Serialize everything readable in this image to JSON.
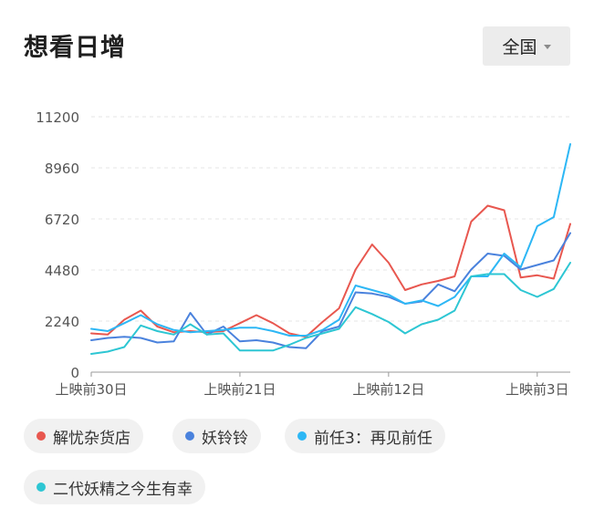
{
  "header": {
    "title": "想看日增",
    "region": "全国"
  },
  "chart_data": {
    "type": "line",
    "title": "",
    "xlabel": "",
    "ylabel": "",
    "ylim": [
      0,
      11200
    ],
    "yticks": [
      0,
      2240,
      4480,
      6720,
      8960,
      11200
    ],
    "xticks": [
      {
        "label": "上映前30日",
        "index": 0
      },
      {
        "label": "上映前21日",
        "index": 9
      },
      {
        "label": "上映前12日",
        "index": 18
      },
      {
        "label": "上映前3日",
        "index": 27
      }
    ],
    "x": [
      "上映前30日",
      "上映前29日",
      "上映前28日",
      "上映前27日",
      "上映前26日",
      "上映前25日",
      "上映前24日",
      "上映前23日",
      "上映前22日",
      "上映前21日",
      "上映前20日",
      "上映前19日",
      "上映前18日",
      "上映前17日",
      "上映前16日",
      "上映前15日",
      "上映前14日",
      "上映前13日",
      "上映前12日",
      "上映前11日",
      "上映前10日",
      "上映前9日",
      "上映前8日",
      "上映前7日",
      "上映前6日",
      "上映前5日",
      "上映前4日",
      "上映前3日",
      "上映前2日",
      "上映前1日"
    ],
    "grid": true,
    "legend_position": "bottom",
    "series": [
      {
        "name": "解忧杂货店",
        "color": "#e8574f",
        "values": [
          1700,
          1650,
          2300,
          2700,
          2000,
          1750,
          1800,
          1750,
          1800,
          2150,
          2500,
          2150,
          1700,
          1550,
          2200,
          2800,
          4500,
          5600,
          4800,
          3600,
          3850,
          4000,
          4200,
          6600,
          7300,
          7100,
          4150,
          4250,
          4100,
          6500
        ]
      },
      {
        "name": "妖铃铃",
        "color": "#4a82dd",
        "values": [
          1400,
          1500,
          1550,
          1500,
          1300,
          1350,
          2600,
          1650,
          2000,
          1350,
          1400,
          1300,
          1100,
          1050,
          1800,
          2000,
          3500,
          3450,
          3300,
          3000,
          3100,
          3850,
          3550,
          4500,
          5200,
          5100,
          4500,
          4700,
          4900,
          6100
        ]
      },
      {
        "name": "前任3：再见前任",
        "color": "#2db7f5",
        "values": [
          1900,
          1800,
          2150,
          2500,
          2100,
          1850,
          1750,
          1800,
          1850,
          1950,
          1950,
          1800,
          1600,
          1600,
          1850,
          2300,
          3800,
          3600,
          3400,
          3000,
          3150,
          2900,
          3300,
          4200,
          4200,
          5200,
          4600,
          6400,
          6800,
          10000
        ]
      },
      {
        "name": "二代妖精之今生有幸",
        "color": "#2dc6d3",
        "values": [
          800,
          900,
          1100,
          2050,
          1800,
          1650,
          2100,
          1650,
          1700,
          950,
          950,
          950,
          1200,
          1500,
          1700,
          1900,
          2850,
          2550,
          2200,
          1700,
          2100,
          2300,
          2700,
          4200,
          4300,
          4300,
          3600,
          3300,
          3650,
          4800
        ]
      }
    ]
  }
}
